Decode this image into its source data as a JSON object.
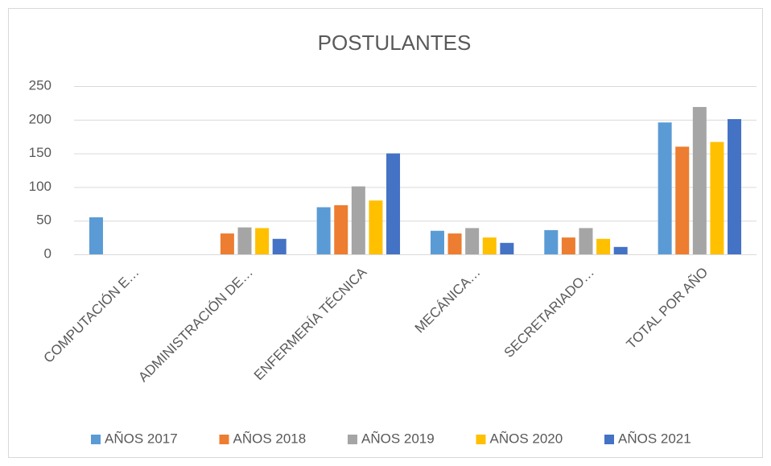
{
  "chart_data": {
    "type": "bar",
    "title": "POSTULANTES",
    "categories": [
      "COMPUTACIÓN E…",
      "ADMINISTRACIÓN DE…",
      "ENFERMERÍA TÉCNICA",
      "MECÁNICA…",
      "SECRETARIADO…",
      "TOTAL POR AÑO"
    ],
    "series": [
      {
        "name": "AÑOS 2017",
        "color": "#5b9bd5",
        "values": [
          55,
          0,
          70,
          35,
          36,
          196
        ]
      },
      {
        "name": "AÑOS 2018",
        "color": "#ed7d31",
        "values": [
          0,
          31,
          73,
          31,
          25,
          160
        ]
      },
      {
        "name": "AÑOS 2019",
        "color": "#a5a5a5",
        "values": [
          0,
          40,
          101,
          39,
          39,
          219
        ]
      },
      {
        "name": "AÑOS 2020",
        "color": "#ffc000",
        "values": [
          0,
          39,
          80,
          25,
          23,
          167
        ]
      },
      {
        "name": "AÑOS 2021",
        "color": "#4472c4",
        "values": [
          0,
          23,
          150,
          17,
          11,
          201
        ]
      }
    ],
    "ylim": [
      0,
      250
    ],
    "yticks": [
      0,
      50,
      100,
      150,
      200,
      250
    ],
    "grid": true,
    "legend": "bottom"
  }
}
